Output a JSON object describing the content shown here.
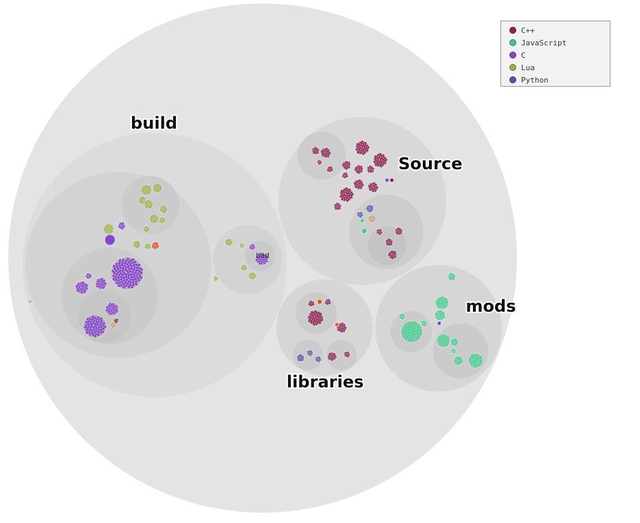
{
  "legend": {
    "items": [
      {
        "label": "C++",
        "color": "#8b2252"
      },
      {
        "label": "JavaScript",
        "color": "#3ec98a"
      },
      {
        "label": "C",
        "color": "#8448c8"
      },
      {
        "label": "Lua",
        "color": "#9ab24a"
      },
      {
        "label": "Python",
        "color": "#5a4fa8"
      }
    ]
  },
  "folders": {
    "build": "build",
    "source": "Source",
    "mods": "mods",
    "libraries": "libraries",
    "sub": "bad"
  },
  "colors": {
    "root": "#e4e4e4",
    "folder": "#d6d6d6",
    "subfolder": "#cfcfcf",
    "other": "#e0522a",
    "misc": "#c8a06a"
  }
}
